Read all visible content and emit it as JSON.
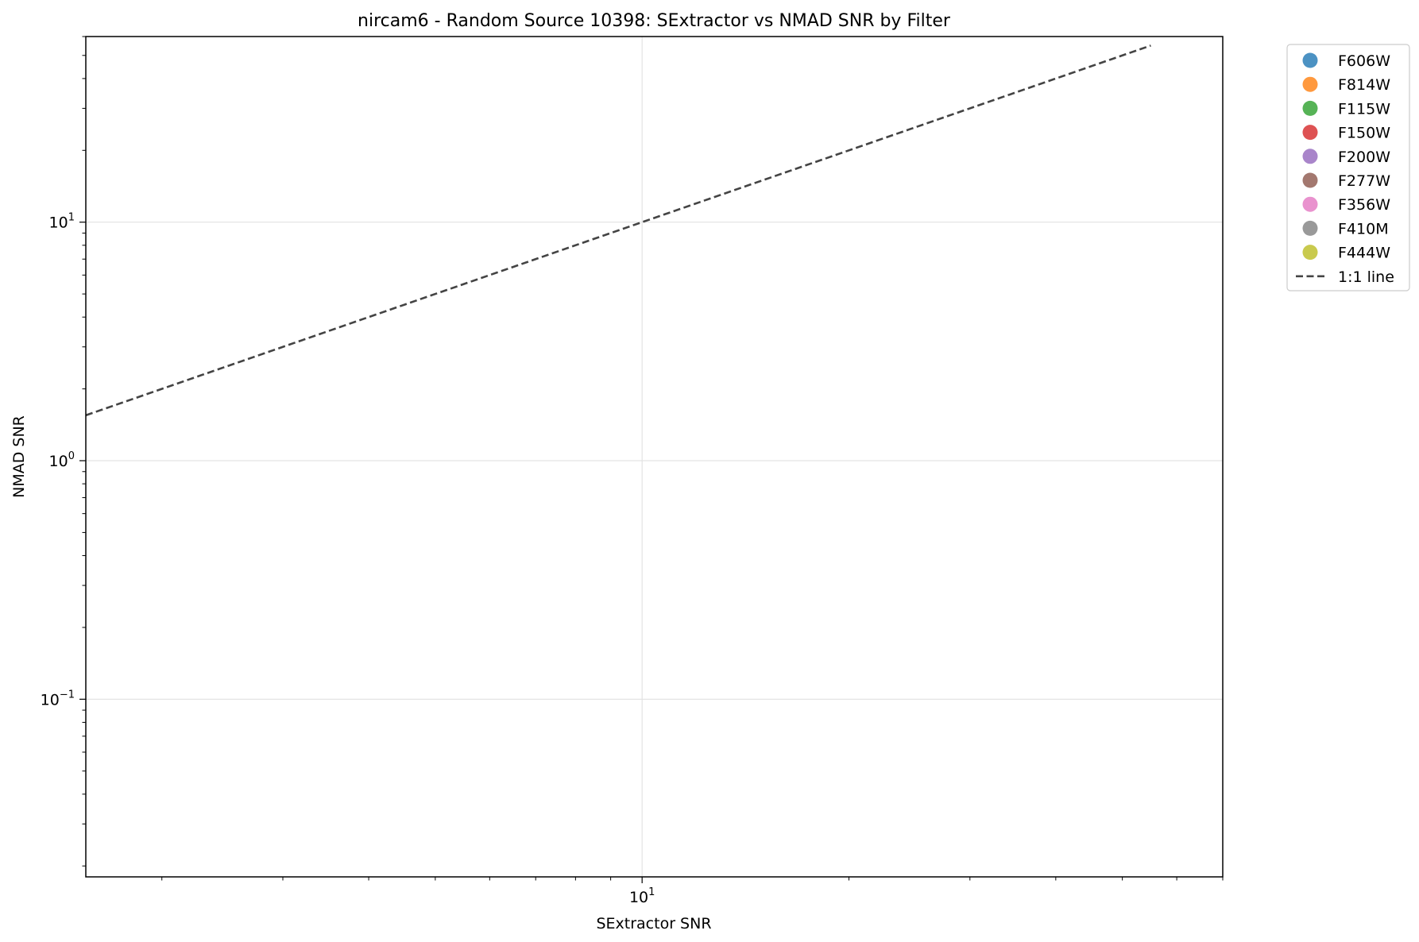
{
  "chart_data": {
    "type": "scatter",
    "title": "nircam6 - Random Source 10398: SExtractor vs NMAD SNR by Filter",
    "xlabel": "SExtractor SNR",
    "ylabel": "NMAD SNR",
    "xscale": "log",
    "yscale": "log",
    "xlim": [
      1.55,
      70
    ],
    "ylim": [
      0.018,
      60
    ],
    "grid": true,
    "legend_position": "outside-top-right",
    "x_major_ticks": [
      {
        "value": 10,
        "base": "10",
        "exp": "1"
      }
    ],
    "y_major_ticks": [
      {
        "value": 0.1,
        "base": "10",
        "exp": "−1"
      },
      {
        "value": 1,
        "base": "10",
        "exp": "0"
      },
      {
        "value": 10,
        "base": "10",
        "exp": "1"
      }
    ],
    "series": [
      {
        "name": "F606W",
        "color": "#1f77b4",
        "x": [],
        "y": []
      },
      {
        "name": "F814W",
        "color": "#ff7f0e",
        "x": [],
        "y": []
      },
      {
        "name": "F115W",
        "color": "#2ca02c",
        "x": [],
        "y": []
      },
      {
        "name": "F150W",
        "color": "#d62728",
        "x": [],
        "y": []
      },
      {
        "name": "F200W",
        "color": "#9467bd",
        "x": [],
        "y": []
      },
      {
        "name": "F277W",
        "color": "#8c564b",
        "x": [],
        "y": []
      },
      {
        "name": "F356W",
        "color": "#e377c2",
        "x": [],
        "y": []
      },
      {
        "name": "F410M",
        "color": "#7f7f7f",
        "x": [],
        "y": []
      },
      {
        "name": "F444W",
        "color": "#bcbd22",
        "x": [],
        "y": []
      }
    ],
    "reference_line": {
      "name": "1:1 line",
      "style": "dashed",
      "color": "#444444",
      "x": [
        1.55,
        55
      ],
      "y": [
        1.55,
        55
      ]
    }
  }
}
